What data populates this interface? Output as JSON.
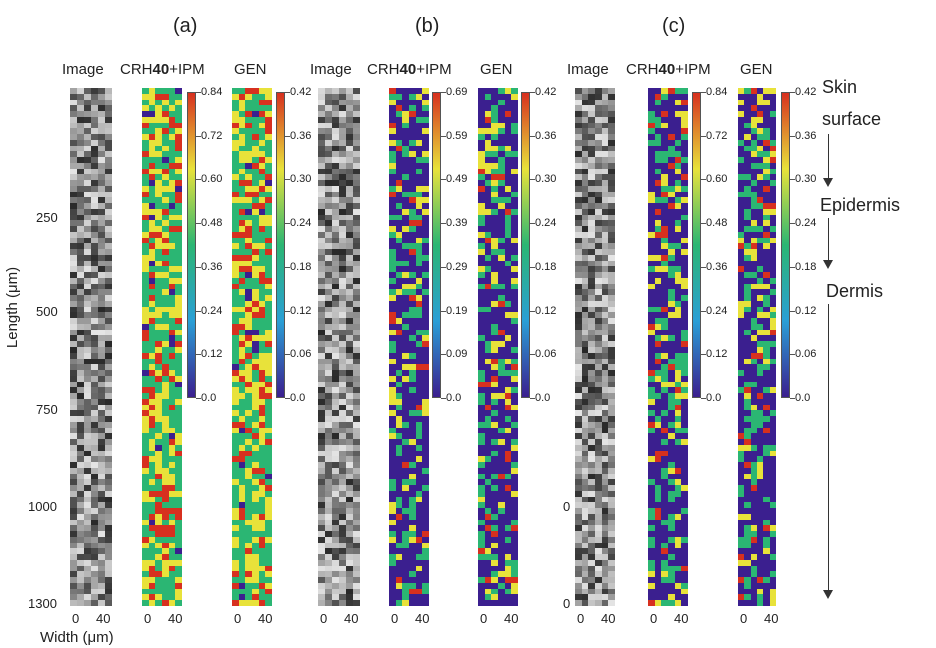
{
  "panels": [
    {
      "label": "(a)",
      "columns": {
        "image": "Image",
        "crh_prefix": "CRH",
        "crh_bold": "40",
        "crh_suffix": "+IPM",
        "gen": "GEN"
      },
      "crh_colorbar": [
        "0.84",
        "0.72",
        "0.60",
        "0.48",
        "0.36",
        "0.24",
        "0.12",
        "0.0"
      ],
      "gen_colorbar": [
        "0.42",
        "0.36",
        "0.30",
        "0.24",
        "0.18",
        "0.12",
        "0.06",
        "0.0"
      ]
    },
    {
      "label": "(b)",
      "columns": {
        "image": "Image",
        "crh_prefix": "CRH",
        "crh_bold": "40",
        "crh_suffix": "+IPM",
        "gen": "GEN"
      },
      "crh_colorbar": [
        "0.69",
        "0.59",
        "0.49",
        "0.39",
        "0.29",
        "0.19",
        "0.09",
        "0.0"
      ],
      "gen_colorbar": [
        "0.42",
        "0.36",
        "0.30",
        "0.24",
        "0.18",
        "0.12",
        "0.06",
        "0.0"
      ]
    },
    {
      "label": "(c)",
      "columns": {
        "image": "Image",
        "crh_prefix": "CRH",
        "crh_bold": "40",
        "crh_suffix": "+IPM",
        "gen": "GEN"
      },
      "crh_colorbar": [
        "0.84",
        "0.72",
        "0.60",
        "0.48",
        "0.36",
        "0.24",
        "0.12",
        "0.0"
      ],
      "gen_colorbar": [
        "0.42",
        "0.36",
        "0.30",
        "0.24",
        "0.18",
        "0.12",
        "0.06",
        "0.0"
      ]
    }
  ],
  "y_axis": {
    "label": "Length (μm)",
    "ticks": [
      "250",
      "500",
      "750",
      "1000",
      "1300"
    ]
  },
  "x_axis": {
    "label": "Width (μm)",
    "ticks": [
      "0",
      "40"
    ]
  },
  "panel_c_extra_ticks": [
    "0",
    "0"
  ],
  "annotations": {
    "surface_line1": "Skin",
    "surface_line2": "surface",
    "epidermis": "Epidermis",
    "dermis": "Dermis"
  },
  "colors": {
    "low": "#3b1f8f",
    "mid": "#2bb673",
    "high": "#e8e23a",
    "peak": "#d7301f"
  }
}
